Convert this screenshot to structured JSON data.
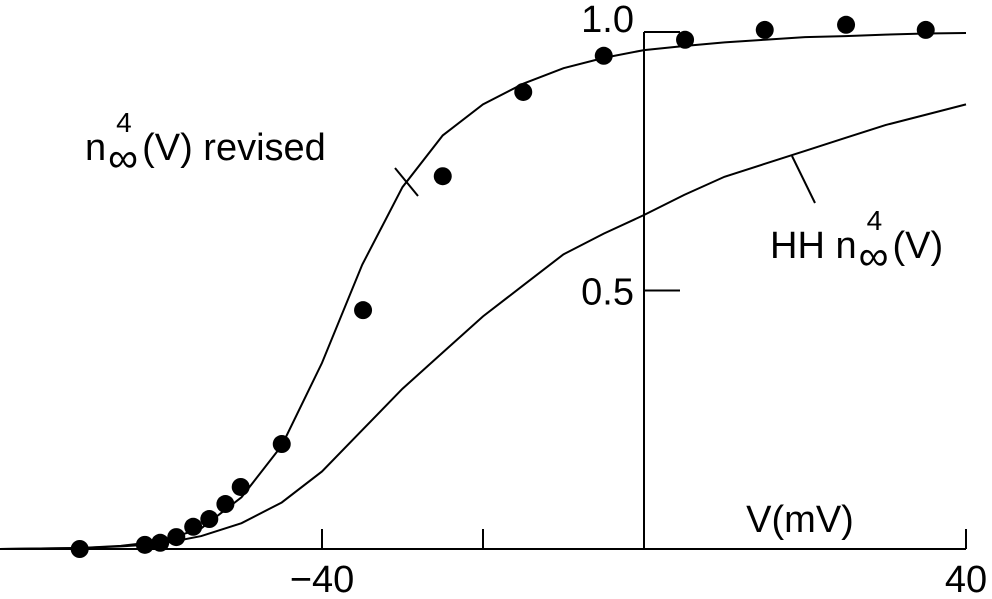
{
  "chart_data": {
    "type": "line",
    "xlabel": "V(mV)",
    "xlim": [
      -80,
      40
    ],
    "ylim": [
      0,
      1
    ],
    "xticks": [
      {
        "value": -40,
        "label": "−40"
      },
      {
        "value": -20,
        "label": null
      },
      40
    ],
    "yticks": [
      0.5,
      {
        "value": 1,
        "label": "1.0"
      }
    ],
    "x": [
      -80,
      -75,
      -70,
      -65,
      -60,
      -55,
      -50,
      -45,
      -40,
      -35,
      -30,
      -25,
      -20,
      -15,
      -10,
      -5,
      0,
      5,
      10,
      15,
      20,
      25,
      30,
      35,
      40
    ],
    "series": [
      {
        "color": "#000000",
        "values": [
          0,
          0.001,
          0.002,
          0.006,
          0.015,
          0.04,
          0.1,
          0.2,
          0.36,
          0.55,
          0.7,
          0.8,
          0.86,
          0.9,
          0.93,
          0.95,
          0.965,
          0.973,
          0.98,
          0.985,
          0.99,
          0.992,
          0.995,
          0.997,
          0.998
        ]
      },
      {
        "color": "#000000",
        "values": [
          0,
          0.001,
          0.002,
          0.005,
          0.01,
          0.025,
          0.05,
          0.09,
          0.15,
          0.23,
          0.31,
          0.38,
          0.45,
          0.51,
          0.57,
          0.61,
          0.646,
          0.685,
          0.72,
          0.745,
          0.77,
          0.795,
          0.82,
          0.84,
          0.86
        ]
      }
    ],
    "points": {
      "color": "#000000",
      "x": [
        -70.1,
        -62,
        -60.1,
        -58.1,
        -56,
        -54,
        -52,
        -50.1,
        -45,
        -34.9,
        -25,
        -15,
        -5,
        5.1,
        15,
        25.1,
        35
      ],
      "y": [
        0,
        0.008,
        0.012,
        0.023,
        0.043,
        0.058,
        0.087,
        0.12,
        0.203,
        0.462,
        0.721,
        0.884,
        0.954,
        0.985,
        1.004,
        1.014,
        1.004
      ]
    },
    "annotations": [
      {
        "before": "n",
        "sub": "∞",
        "sup": "4",
        "after": "(V) revised"
      },
      {
        "before": "HH n",
        "sub": "∞",
        "sup": "4",
        "after": "(V)"
      }
    ]
  }
}
